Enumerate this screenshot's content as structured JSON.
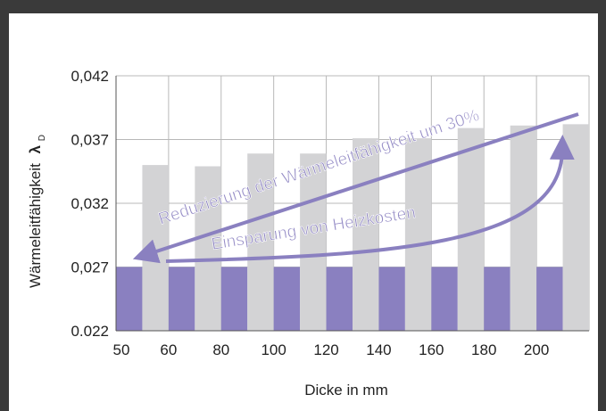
{
  "chart_data": {
    "type": "bar",
    "categories": [
      "50",
      "60",
      "80",
      "100",
      "120",
      "140",
      "160",
      "180",
      "200"
    ],
    "series": [
      {
        "values": [
          0.027,
          0.027,
          0.027,
          0.027,
          0.027,
          0.027,
          0.027,
          0.027,
          0.027
        ]
      },
      {
        "values": [
          0.035,
          0.0349,
          0.0359,
          0.0359,
          0.0371,
          0.0371,
          0.0379,
          0.0381,
          0.0382
        ]
      }
    ],
    "xlabel": "Dicke in mm",
    "ylabel": "Wärmeleitfähigkeit",
    "ylabel_symbol": "λ",
    "ylabel_subscript": "D",
    "ylim": [
      0.022,
      0.042
    ],
    "yticks": [
      "0.022",
      "0,027",
      "0,032",
      "0,037",
      "0,042"
    ],
    "ytick_values": [
      0.022,
      0.027,
      0.032,
      0.037,
      0.042
    ],
    "grid": true,
    "annotations": [
      "Reduzierung der Wärmeleitfähigkeit um 30%",
      "Einsparung von Heizkosten"
    ],
    "colors": {
      "series1": "#8a80c0",
      "series2": "#d3d3d5",
      "annotation": "#8a80c0",
      "grid": "#b8b8b8",
      "background": "#3a3a3a"
    }
  }
}
